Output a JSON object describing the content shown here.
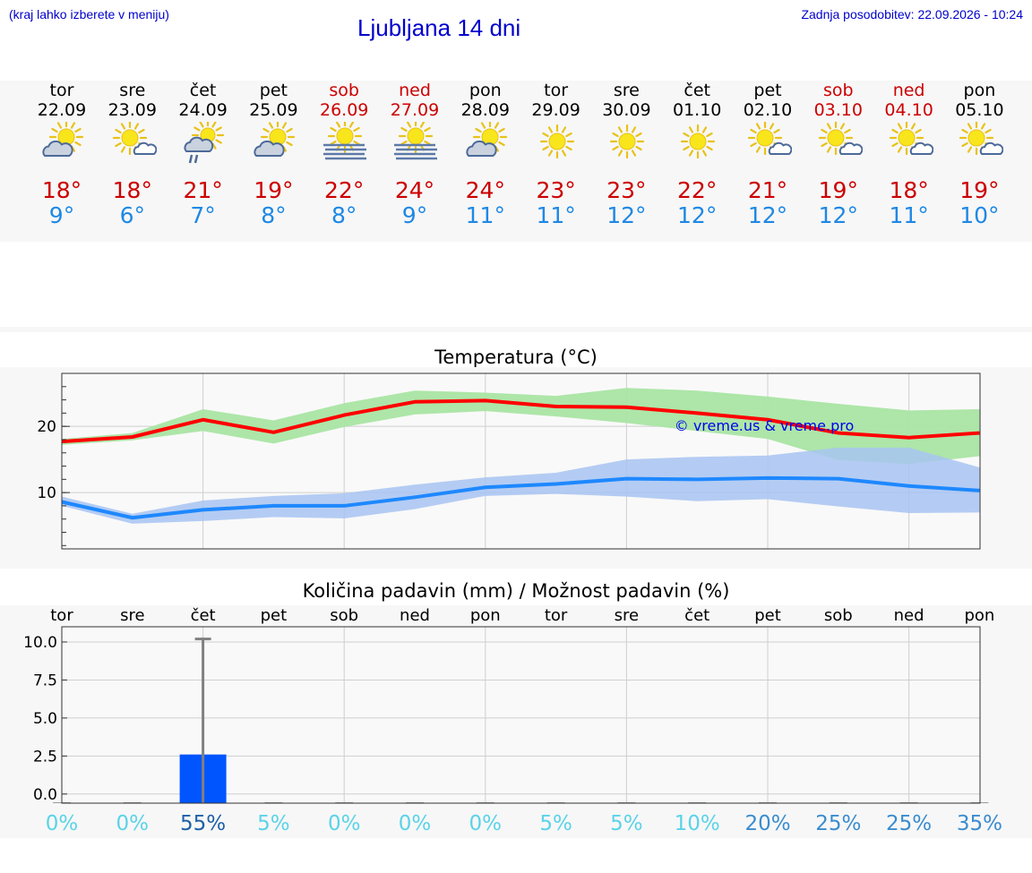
{
  "header": {
    "left_note": "(kraj lahko izberete v meniju)",
    "title": "Ljubljana 14 dni",
    "updated": "Zadnja posodobitev: 22.09.2026 - 10:24"
  },
  "days": [
    {
      "name": "tor",
      "date": "22.09",
      "weekend": false,
      "icon": "sun-cloud-icon",
      "tmax": "18°",
      "tmin": "9°"
    },
    {
      "name": "sre",
      "date": "23.09",
      "weekend": false,
      "icon": "sun-small-cloud-icon",
      "tmax": "18°",
      "tmin": "6°"
    },
    {
      "name": "čet",
      "date": "24.09",
      "weekend": false,
      "icon": "sun-cloud-rain-icon",
      "tmax": "21°",
      "tmin": "7°"
    },
    {
      "name": "pet",
      "date": "25.09",
      "weekend": false,
      "icon": "sun-cloud-icon",
      "tmax": "19°",
      "tmin": "8°"
    },
    {
      "name": "sob",
      "date": "26.09",
      "weekend": true,
      "icon": "sun-fog-icon",
      "tmax": "22°",
      "tmin": "8°"
    },
    {
      "name": "ned",
      "date": "27.09",
      "weekend": true,
      "icon": "sun-fog-icon",
      "tmax": "24°",
      "tmin": "9°"
    },
    {
      "name": "pon",
      "date": "28.09",
      "weekend": false,
      "icon": "sun-cloud-icon",
      "tmax": "24°",
      "tmin": "11°"
    },
    {
      "name": "tor",
      "date": "29.09",
      "weekend": false,
      "icon": "sun-icon",
      "tmax": "23°",
      "tmin": "11°"
    },
    {
      "name": "sre",
      "date": "30.09",
      "weekend": false,
      "icon": "sun-icon",
      "tmax": "23°",
      "tmin": "12°"
    },
    {
      "name": "čet",
      "date": "01.10",
      "weekend": false,
      "icon": "sun-icon",
      "tmax": "22°",
      "tmin": "12°"
    },
    {
      "name": "pet",
      "date": "02.10",
      "weekend": false,
      "icon": "sun-small-cloud-icon",
      "tmax": "21°",
      "tmin": "12°"
    },
    {
      "name": "sob",
      "date": "03.10",
      "weekend": true,
      "icon": "sun-small-cloud-icon",
      "tmax": "19°",
      "tmin": "12°"
    },
    {
      "name": "ned",
      "date": "04.10",
      "weekend": true,
      "icon": "sun-small-cloud-icon",
      "tmax": "18°",
      "tmin": "11°"
    },
    {
      "name": "pon",
      "date": "05.10",
      "weekend": false,
      "icon": "sun-small-cloud-icon",
      "tmax": "19°",
      "tmin": "10°"
    }
  ],
  "colors": {
    "max_line": "#ff0000",
    "max_band": "#a9e5a3",
    "min_line": "#1e88ff",
    "min_band": "#a8c4f2",
    "rain_bar": "#0055ff",
    "error_bar": "#808080",
    "prob_low": "#5ad3e8",
    "prob_high": "#1e5fa8"
  },
  "chart_data": [
    {
      "type": "line",
      "title": "Temperatura (°C)",
      "watermark": "© vreme.us & vreme.pro",
      "ylim": [
        1.5,
        28
      ],
      "yticks": [
        10,
        20
      ],
      "grid": true,
      "x": [
        0,
        1,
        2,
        3,
        4,
        5,
        6,
        7,
        8,
        9,
        10,
        11,
        12,
        13
      ],
      "series": [
        {
          "key": "max",
          "values": [
            17.7,
            18.4,
            21.0,
            19.1,
            21.7,
            23.7,
            23.9,
            23.0,
            22.9,
            22.0,
            21.0,
            19.0,
            18.3,
            19.0
          ],
          "band_low": [
            17.2,
            17.9,
            19.3,
            17.4,
            19.9,
            21.8,
            22.3,
            21.5,
            20.5,
            19.3,
            18.1,
            14.9,
            14.3,
            15.5
          ],
          "band_high": [
            18.1,
            19.0,
            22.6,
            20.9,
            23.5,
            25.4,
            25.1,
            24.6,
            25.8,
            25.4,
            24.5,
            23.4,
            22.4,
            22.6
          ]
        },
        {
          "key": "min",
          "values": [
            8.6,
            6.2,
            7.4,
            8.0,
            8.0,
            9.3,
            10.8,
            11.3,
            12.1,
            12.0,
            12.2,
            12.1,
            11.0,
            10.3
          ],
          "band_low": [
            8.0,
            5.3,
            5.7,
            6.3,
            6.1,
            7.5,
            9.5,
            9.8,
            9.4,
            8.7,
            9.0,
            7.9,
            6.9,
            7.0
          ],
          "band_high": [
            9.4,
            6.8,
            8.8,
            9.5,
            9.9,
            11.2,
            12.3,
            13.0,
            15.0,
            15.4,
            15.6,
            16.8,
            16.8,
            13.8
          ]
        }
      ]
    },
    {
      "type": "bar",
      "title": "Količina padavin (mm) / Možnost padavin (%)",
      "categories": [
        "tor",
        "sre",
        "čet",
        "pet",
        "sob",
        "ned",
        "pon",
        "tor",
        "sre",
        "čet",
        "pet",
        "sob",
        "ned",
        "pon"
      ],
      "values": [
        0,
        0,
        2.6,
        0,
        0,
        0,
        0,
        0,
        0,
        0,
        0,
        0,
        0,
        0
      ],
      "error_high": [
        0,
        0,
        10.2,
        0,
        0,
        0,
        0,
        0,
        0,
        0,
        0,
        0,
        0,
        0
      ],
      "ylim": [
        -0.6,
        11.0
      ],
      "yticks": [
        "0.0",
        "2.5",
        "5.0",
        "7.5",
        "10.0"
      ],
      "probability": [
        "0%",
        "0%",
        "55%",
        "5%",
        "0%",
        "0%",
        "0%",
        "5%",
        "5%",
        "10%",
        "20%",
        "25%",
        "25%",
        "35%"
      ],
      "grid": true
    }
  ]
}
